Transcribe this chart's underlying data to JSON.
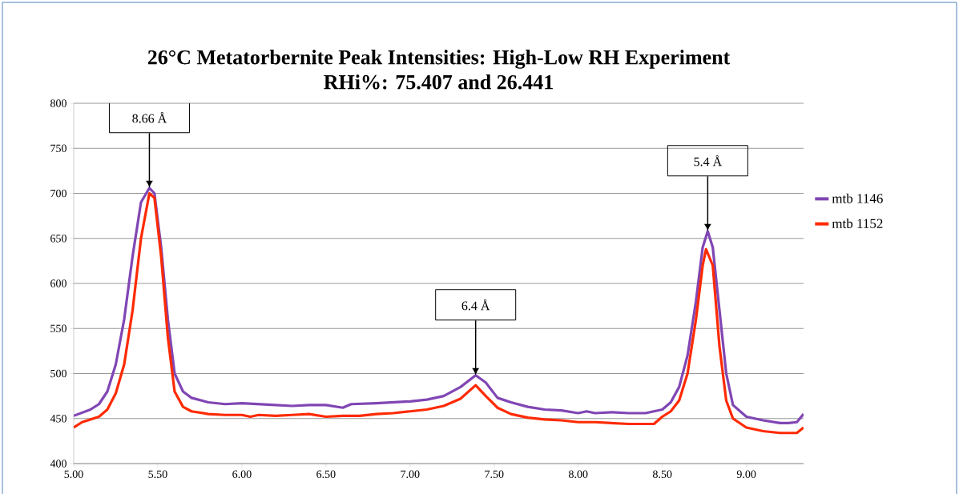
{
  "chart_data": {
    "type": "line",
    "title": "26°C Metatorbernite Peak Intensities:  High-Low RH Experiment",
    "subtitle": "RHi%:   75.407 and 26.441",
    "xlim": [
      5,
      9.34
    ],
    "ylim": [
      400,
      800
    ],
    "xticks": [
      {
        "value": 5,
        "label": "5.00"
      },
      {
        "value": 5.5,
        "label": "5.50"
      },
      {
        "value": 6,
        "label": "6.00"
      },
      {
        "value": 6.5,
        "label": "6.50"
      },
      {
        "value": 7,
        "label": "7.00"
      },
      {
        "value": 7.5,
        "label": "7.50"
      },
      {
        "value": 8,
        "label": "8.00"
      },
      {
        "value": 8.5,
        "label": "8.50"
      },
      {
        "value": 9,
        "label": "9.00"
      }
    ],
    "yticks": [
      400,
      450,
      500,
      550,
      600,
      650,
      700,
      750,
      800
    ],
    "grid": "y",
    "legend": "right",
    "marker": "none",
    "line_style": "solid",
    "series": [
      {
        "name": "mtb 1146",
        "color": "#8046b4",
        "x": [
          5.0,
          5.1,
          5.15,
          5.2,
          5.25,
          5.3,
          5.35,
          5.4,
          5.45,
          5.48,
          5.52,
          5.56,
          5.6,
          5.65,
          5.7,
          5.8,
          5.9,
          6.0,
          6.1,
          6.2,
          6.3,
          6.4,
          6.5,
          6.6,
          6.65,
          6.8,
          7.0,
          7.1,
          7.2,
          7.3,
          7.39,
          7.45,
          7.52,
          7.6,
          7.7,
          7.8,
          7.9,
          8.0,
          8.05,
          8.1,
          8.2,
          8.3,
          8.4,
          8.5,
          8.55,
          8.6,
          8.65,
          8.7,
          8.74,
          8.77,
          8.8,
          8.84,
          8.88,
          8.92,
          9.0,
          9.1,
          9.2,
          9.25,
          9.3,
          9.34
        ],
        "values": [
          453,
          460,
          466,
          480,
          510,
          560,
          630,
          690,
          706,
          700,
          640,
          560,
          500,
          480,
          473,
          468,
          466,
          467,
          466,
          465,
          464,
          465,
          465,
          462,
          466,
          467,
          469,
          471,
          475,
          485,
          498,
          490,
          473,
          468,
          463,
          460,
          459,
          456,
          458,
          456,
          457,
          456,
          456,
          460,
          468,
          485,
          520,
          580,
          640,
          658,
          640,
          570,
          500,
          465,
          452,
          448,
          445,
          445,
          446,
          455
        ]
      },
      {
        "name": "mtb 1152",
        "color": "#ff2a00",
        "x": [
          5.0,
          5.05,
          5.15,
          5.2,
          5.25,
          5.3,
          5.35,
          5.4,
          5.45,
          5.48,
          5.52,
          5.56,
          5.6,
          5.65,
          5.7,
          5.8,
          5.9,
          6.0,
          6.05,
          6.1,
          6.2,
          6.3,
          6.4,
          6.5,
          6.6,
          6.7,
          6.8,
          6.9,
          7.0,
          7.1,
          7.2,
          7.3,
          7.39,
          7.45,
          7.52,
          7.6,
          7.7,
          7.8,
          7.9,
          8.0,
          8.1,
          8.2,
          8.3,
          8.4,
          8.45,
          8.5,
          8.55,
          8.6,
          8.65,
          8.7,
          8.74,
          8.76,
          8.8,
          8.84,
          8.88,
          8.92,
          9.0,
          9.1,
          9.2,
          9.3,
          9.34
        ],
        "values": [
          440,
          446,
          452,
          460,
          478,
          510,
          570,
          650,
          700,
          695,
          630,
          540,
          480,
          463,
          458,
          455,
          454,
          454,
          452,
          454,
          453,
          454,
          455,
          452,
          453,
          453,
          455,
          456,
          458,
          460,
          464,
          472,
          487,
          475,
          462,
          455,
          451,
          449,
          448,
          446,
          446,
          445,
          444,
          444,
          444,
          452,
          458,
          470,
          500,
          560,
          620,
          638,
          620,
          530,
          470,
          450,
          440,
          436,
          434,
          434,
          440
        ]
      }
    ],
    "annotations": [
      {
        "text": "8.66 Å",
        "x": 5.45,
        "y": 706
      },
      {
        "text": "6.4 Å",
        "x": 7.39,
        "y": 498
      },
      {
        "text": "5.4 Å",
        "x": 8.77,
        "y": 658
      }
    ]
  }
}
